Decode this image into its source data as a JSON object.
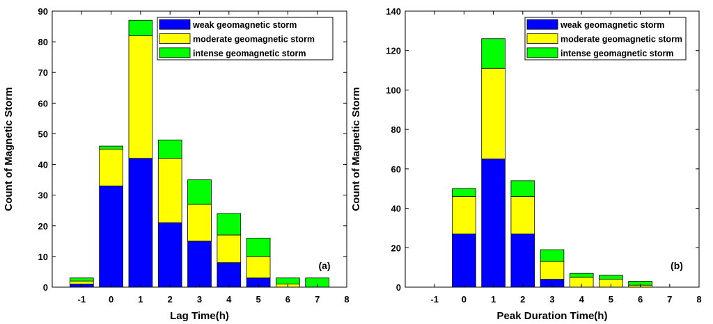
{
  "chart_data": [
    {
      "type": "bar",
      "stacked": true,
      "panel_label": "(a)",
      "xlabel": "Lag Time(h)",
      "ylabel": "Count of Magnetic Storm",
      "xlim": [
        -2,
        8
      ],
      "ylim": [
        0,
        90
      ],
      "xticks": [
        -1,
        0,
        1,
        2,
        3,
        4,
        5,
        6,
        7,
        8
      ],
      "yticks": [
        0,
        10,
        20,
        30,
        40,
        50,
        60,
        70,
        80,
        90
      ],
      "legend_position": "top-right",
      "x": [
        -1,
        0,
        1,
        2,
        3,
        4,
        5,
        6,
        7
      ],
      "series": [
        {
          "name": "weak geomagnetic storm",
          "color": "#0000ff",
          "values": [
            1,
            33,
            42,
            21,
            15,
            8,
            3,
            0,
            0
          ]
        },
        {
          "name": "moderate geomagnetic storm",
          "color": "#ffff00",
          "values": [
            1,
            12,
            40,
            21,
            12,
            9,
            7,
            1,
            0
          ]
        },
        {
          "name": "intense geomagnetic storm",
          "color": "#00ff00",
          "values": [
            1,
            1,
            5,
            6,
            8,
            7,
            6,
            2,
            3
          ]
        }
      ]
    },
    {
      "type": "bar",
      "stacked": true,
      "panel_label": "(b)",
      "xlabel": "Peak Duration Time(h)",
      "ylabel": "Count of Magnetic Storm",
      "xlim": [
        -2,
        8
      ],
      "ylim": [
        0,
        140
      ],
      "xticks": [
        -1,
        0,
        1,
        2,
        3,
        4,
        5,
        6,
        7,
        8
      ],
      "yticks": [
        0,
        20,
        40,
        60,
        80,
        100,
        120,
        140
      ],
      "legend_position": "top-right",
      "x": [
        -1,
        0,
        1,
        2,
        3,
        4,
        5,
        6,
        7
      ],
      "series": [
        {
          "name": "weak geomagnetic storm",
          "color": "#0000ff",
          "values": [
            0,
            27,
            65,
            27,
            4,
            0,
            0,
            0,
            0
          ]
        },
        {
          "name": "moderate geomagnetic storm",
          "color": "#ffff00",
          "values": [
            0,
            19,
            46,
            19,
            9,
            5,
            4,
            1,
            0
          ]
        },
        {
          "name": "intense geomagnetic storm",
          "color": "#00ff00",
          "values": [
            0,
            4,
            15,
            8,
            6,
            2,
            2,
            2,
            0
          ]
        }
      ]
    }
  ]
}
